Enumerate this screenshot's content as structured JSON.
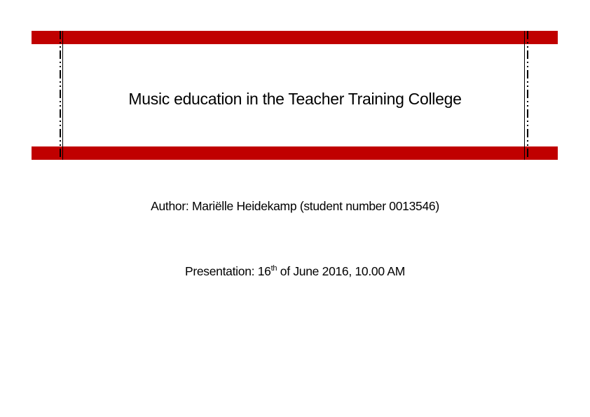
{
  "title": "Music education in the Teacher Training College",
  "author": "Author: Mariëlle Heidekamp (student number 0013546)",
  "presentation": {
    "prefix": "Presentation: 16",
    "superscript": "th",
    "suffix": " of June 2016, 10.00 AM"
  },
  "colors": {
    "accent": "#c00000"
  }
}
